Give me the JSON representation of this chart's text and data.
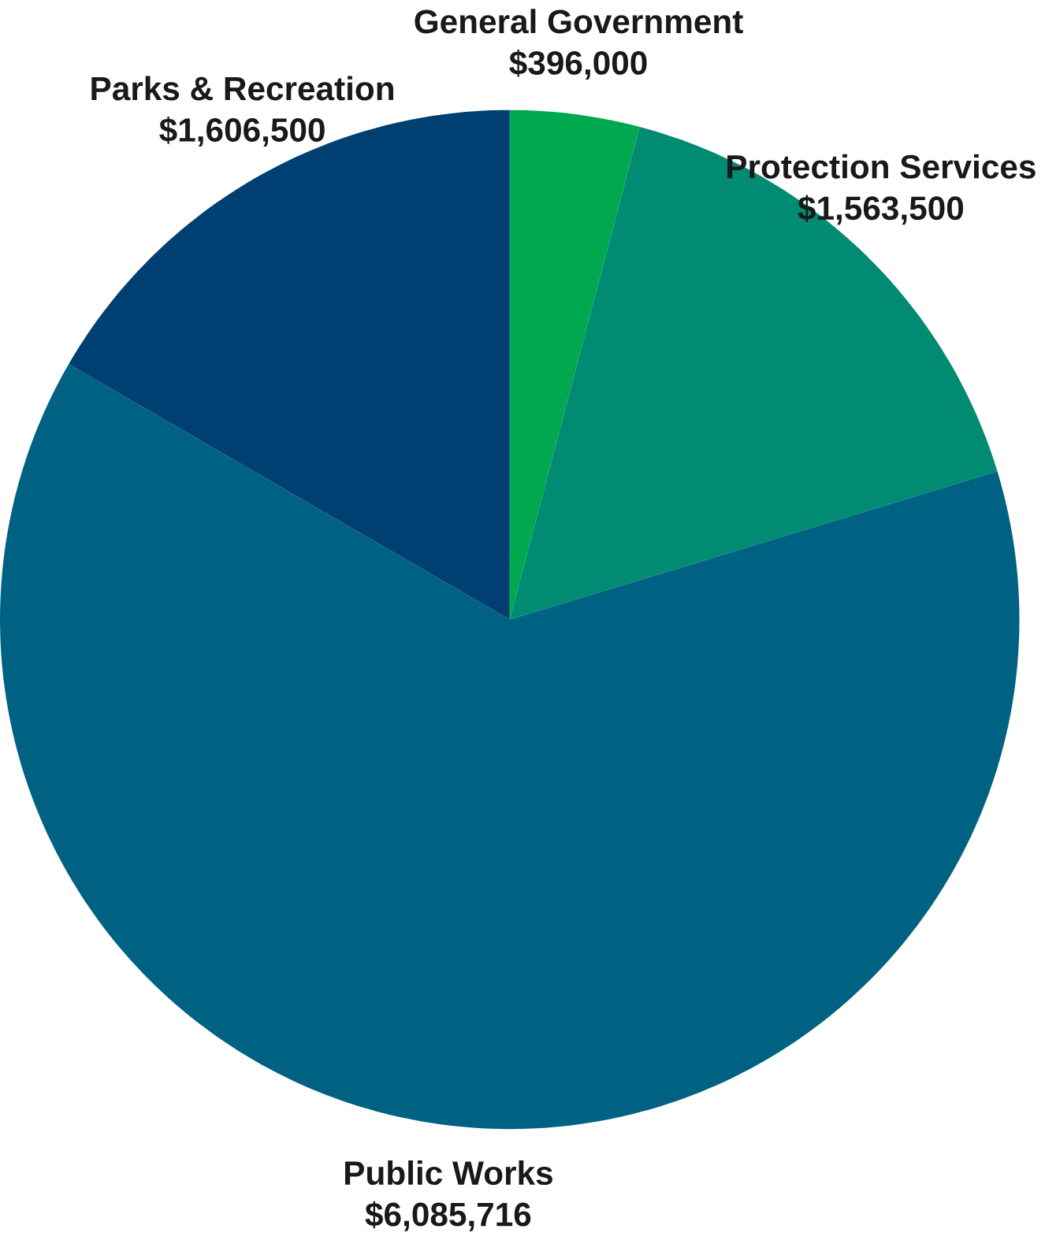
{
  "chart_data": {
    "type": "pie",
    "categories": [
      "General Government",
      "Protection Services",
      "Public Works",
      "Parks & Recreation"
    ],
    "values": [
      396000,
      1563500,
      6085716,
      1606500
    ],
    "value_labels": [
      "$396,000",
      "$1,563,500",
      "$6,085,716",
      "$1,606,500"
    ],
    "colors": [
      "#00a84f",
      "#008b72",
      "#006283",
      "#003f72"
    ]
  }
}
